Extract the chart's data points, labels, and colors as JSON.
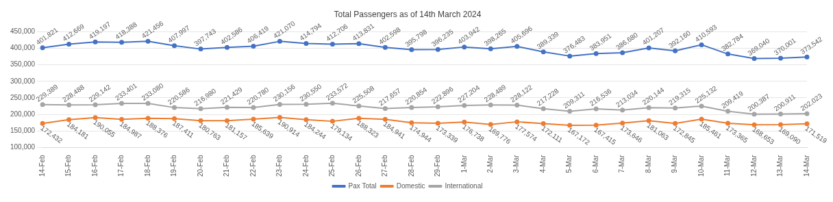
{
  "chart_data": {
    "type": "line",
    "title": "Total Passengers as of 14th March 2024",
    "categories": [
      "14-Feb",
      "15-Feb",
      "16-Feb",
      "17-Feb",
      "18-Feb",
      "19-Feb",
      "20-Feb",
      "21-Feb",
      "22-Feb",
      "23-Feb",
      "24-Feb",
      "25-Feb",
      "26-Feb",
      "27-Feb",
      "28-Feb",
      "29-Feb",
      "1-Mar",
      "2-Mar",
      "3-Mar",
      "4-Mar",
      "5-Mar",
      "6-Mar",
      "7-Mar",
      "8-Mar",
      "9-Mar",
      "10-Mar",
      "11-Mar",
      "12-Mar",
      "13-Mar",
      "14-Mar"
    ],
    "series": [
      {
        "name": "Pax Total",
        "color": "#4472c4",
        "values": [
          401821,
          412669,
          419197,
          418388,
          421456,
          407997,
          397743,
          402586,
          406419,
          421070,
          414794,
          412706,
          413831,
          402598,
          395798,
          396235,
          403942,
          398265,
          405696,
          389339,
          376483,
          383951,
          386680,
          401207,
          392160,
          410593,
          382784,
          369040,
          370001,
          373542
        ],
        "value_labels": [
          "401,821",
          "412,669",
          "419,197",
          "418,388",
          "421,456",
          "407,997",
          "397,743",
          "402,586",
          "406,419",
          "421,070",
          "414,794",
          "412,706",
          "413,831",
          "402,598",
          "395,798",
          "396,235",
          "403,942",
          "398,265",
          "405,696",
          "389,339",
          "376,483",
          "383,951",
          "386,680",
          "401,207",
          "392,160",
          "410,593",
          "382,784",
          "369,040",
          "370,001",
          "373,542"
        ]
      },
      {
        "name": "Domestic",
        "color": "#ed7d31",
        "values": [
          172432,
          184181,
          190055,
          184987,
          188376,
          187411,
          180763,
          181157,
          185639,
          190914,
          184244,
          179134,
          188323,
          184941,
          174944,
          173339,
          176738,
          169776,
          177574,
          172111,
          167172,
          167415,
          173646,
          181063,
          172845,
          185461,
          173365,
          168653,
          169090,
          171519
        ],
        "value_labels": [
          "172,432",
          "184,181",
          "190,055",
          "184,987",
          "188,376",
          "187,411",
          "180,763",
          "181,157",
          "185,639",
          "190,914",
          "184,244",
          "179,134",
          "188,323",
          "184,941",
          "174,944",
          "173,339",
          "176,738",
          "169,776",
          "177,574",
          "172,111",
          "167,172",
          "167,415",
          "173,646",
          "181,063",
          "172,845",
          "185,461",
          "173,365",
          "168,653",
          "169,090",
          "171,519"
        ]
      },
      {
        "name": "International",
        "color": "#a5a5a5",
        "values": [
          229389,
          228488,
          229142,
          233401,
          233080,
          220586,
          216980,
          221429,
          220780,
          230156,
          230550,
          233572,
          225508,
          217657,
          220854,
          222896,
          227204,
          228489,
          228122,
          217228,
          209311,
          216536,
          213034,
          220144,
          219315,
          225132,
          209419,
          200387,
          200911,
          202023
        ],
        "value_labels": [
          "229,389",
          "228,488",
          "229,142",
          "233,401",
          "233,080",
          "220,586",
          "216,980",
          "221,429",
          "220,780",
          "230,156",
          "230,550",
          "233,572",
          "225,508",
          "217,657",
          "220,854",
          "222,896",
          "227,204",
          "228,489",
          "228,122",
          "217,228",
          "209,311",
          "216,536",
          "213,034",
          "220,144",
          "219,315",
          "225,132",
          "209,419",
          "200,387",
          "200,911",
          "202,023"
        ]
      }
    ],
    "ylim": [
      100000,
      450000
    ],
    "yticks": [
      {
        "value": 100000,
        "label": "100,000"
      },
      {
        "value": 150000,
        "label": "150,000"
      },
      {
        "value": 200000,
        "label": "200,000"
      },
      {
        "value": 250000,
        "label": "250,000"
      },
      {
        "value": 300000,
        "label": "300,000"
      },
      {
        "value": 350000,
        "label": "350,000"
      },
      {
        "value": 400000,
        "label": "400,000"
      },
      {
        "value": 450000,
        "label": "450,000"
      }
    ],
    "grid": "y",
    "legend": "bottom",
    "marker": "circle",
    "line_style": "solid"
  }
}
